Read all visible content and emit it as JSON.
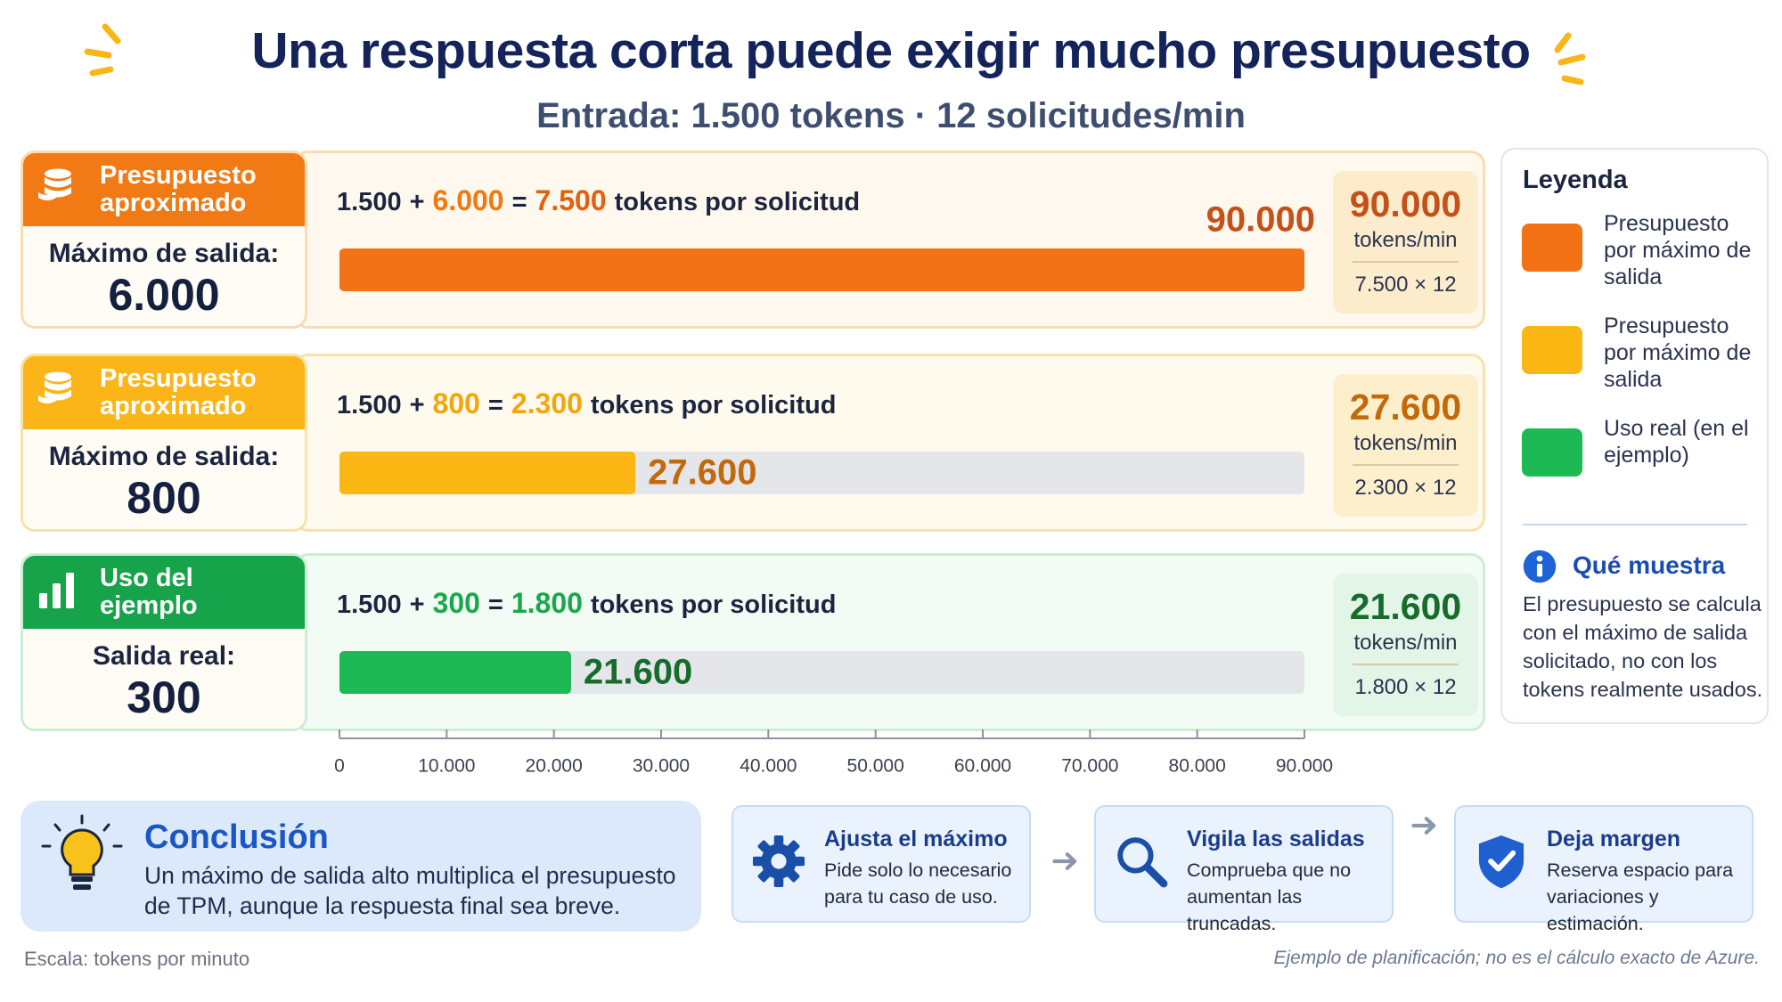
{
  "header": {
    "title": "Una respuesta corta puede exigir mucho presupuesto",
    "subtitle": "Entrada: 1.500 tokens · 12 solicitudes/min"
  },
  "rows": [
    {
      "badge": "Presupuesto aproximado",
      "limit_label": "Máximo de salida:",
      "limit": "6.000",
      "formula": [
        "1.500",
        "+",
        "6.000",
        "=",
        "7.500",
        "tokens por solicitud"
      ],
      "rate_unit": "tokens/min",
      "rate_calc": "7.500 × 12"
    },
    {
      "badge": "Presupuesto aproximado",
      "limit_label": "Máximo de salida:",
      "limit": "800",
      "formula": [
        "1.500",
        "+",
        "800",
        "=",
        "2.300",
        "tokens por solicitud"
      ],
      "rate_unit": "tokens/min",
      "rate_calc": "2.300 × 12"
    },
    {
      "badge": "Uso del ejemplo",
      "limit_label": "Salida real:",
      "limit": "300",
      "formula": [
        "1.500",
        "+",
        "300",
        "=",
        "1.800",
        "tokens por solicitud"
      ],
      "rate_unit": "tokens/min",
      "rate_calc": "1.800 × 12"
    }
  ],
  "chart_data": {
    "type": "bar",
    "orientation": "horizontal",
    "values": [
      90000,
      27600,
      21600
    ],
    "value_labels": [
      "90.000",
      "27.600",
      "21.600"
    ],
    "colors": [
      "#f37216",
      "#fbb815",
      "#1db954"
    ],
    "xlim": [
      0,
      90000
    ],
    "xticks": [
      0,
      {
        "value": 10000,
        "label": "10.000"
      },
      {
        "value": 20000,
        "label": "20.000"
      },
      {
        "value": 30000,
        "label": "30.000"
      },
      {
        "value": 40000,
        "label": "40.000"
      },
      {
        "value": 50000,
        "label": "50.000"
      },
      {
        "value": 60000,
        "label": "60.000"
      },
      {
        "value": 70000,
        "label": "70.000"
      },
      {
        "value": 80000,
        "label": "80.000"
      },
      {
        "value": 90000,
        "label": "90.000"
      }
    ],
    "x_label": "Escala: tokens por minuto"
  },
  "legend": {
    "title": "Leyenda",
    "items": [
      {
        "label": "Presupuesto por máximo de salida",
        "color": "#f37216"
      },
      {
        "label": "Presupuesto por máximo de salida",
        "color": "#fbb815"
      },
      {
        "label": "Uso real (en el ejemplo)",
        "color": "#1db954"
      }
    ]
  },
  "info": {
    "title": "Qué muestra",
    "text": "El presupuesto se calcula con el máximo de salida solicitado, no con los tokens realmente usados."
  },
  "conclusion": {
    "title": "Conclusión",
    "text": "Un máximo de salida alto multiplica el presupuesto de TPM, aunque la respuesta final sea breve."
  },
  "tips": [
    {
      "title": "Ajusta el máximo",
      "text": "Pide solo lo necesario para tu caso de uso."
    },
    {
      "title": "Vigila las salidas",
      "text": "Comprueba que no aumentan las truncadas."
    },
    {
      "title": "Deja margen",
      "text": "Reserva espacio para variaciones y estimación."
    }
  ],
  "footnote": "Ejemplo de planificación; no es el cálculo exacto de Azure."
}
